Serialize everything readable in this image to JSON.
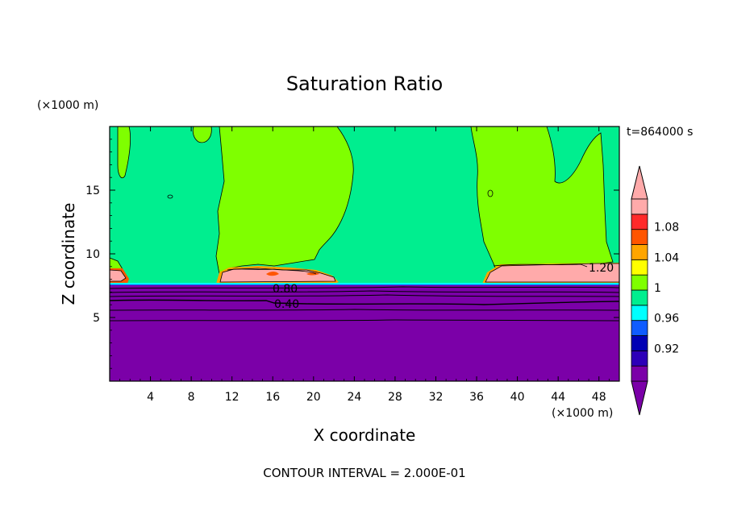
{
  "chart_data": {
    "type": "contour",
    "title": "Saturation Ratio",
    "xlabel": "X coordinate",
    "ylabel": "Z coordinate",
    "x_unit": "(×1000 m)",
    "y_unit": "(×1000 m)",
    "time_label": "t=864000 s",
    "footer": "CONTOUR INTERVAL = 2.000E-01",
    "xlim": [
      0,
      50
    ],
    "ylim": [
      0,
      20
    ],
    "x_ticks": [
      "4",
      "8",
      "12",
      "16",
      "20",
      "24",
      "28",
      "32",
      "36",
      "40",
      "44",
      "48"
    ],
    "y_ticks": [
      "5",
      "10",
      "15"
    ],
    "contour_labels": [
      "1.20",
      "0.80",
      "0.40"
    ],
    "colorbar": {
      "tick_labels": [
        "1.08",
        "1.04",
        "1",
        "0.96",
        "0.92"
      ],
      "levels": [
        {
          "color": "#7b00a8"
        },
        {
          "color": "#2d00b8"
        },
        {
          "color": "#0000b4"
        },
        {
          "color": "#0f5cff"
        },
        {
          "color": "#00ffff"
        },
        {
          "color": "#00ee8f"
        },
        {
          "color": "#7fff00"
        },
        {
          "color": "#ffff00"
        },
        {
          "color": "#ffa500"
        },
        {
          "color": "#ff5500"
        },
        {
          "color": "#ff2a2a"
        },
        {
          "color": "#ffaaaa"
        }
      ]
    },
    "colors": {
      "upper_green": "#00ee8f",
      "lime": "#7fff00",
      "purple": "#7b00a8",
      "pink": "#ffaaaa",
      "orange": "#ffa500",
      "red": "#ff5500"
    }
  }
}
